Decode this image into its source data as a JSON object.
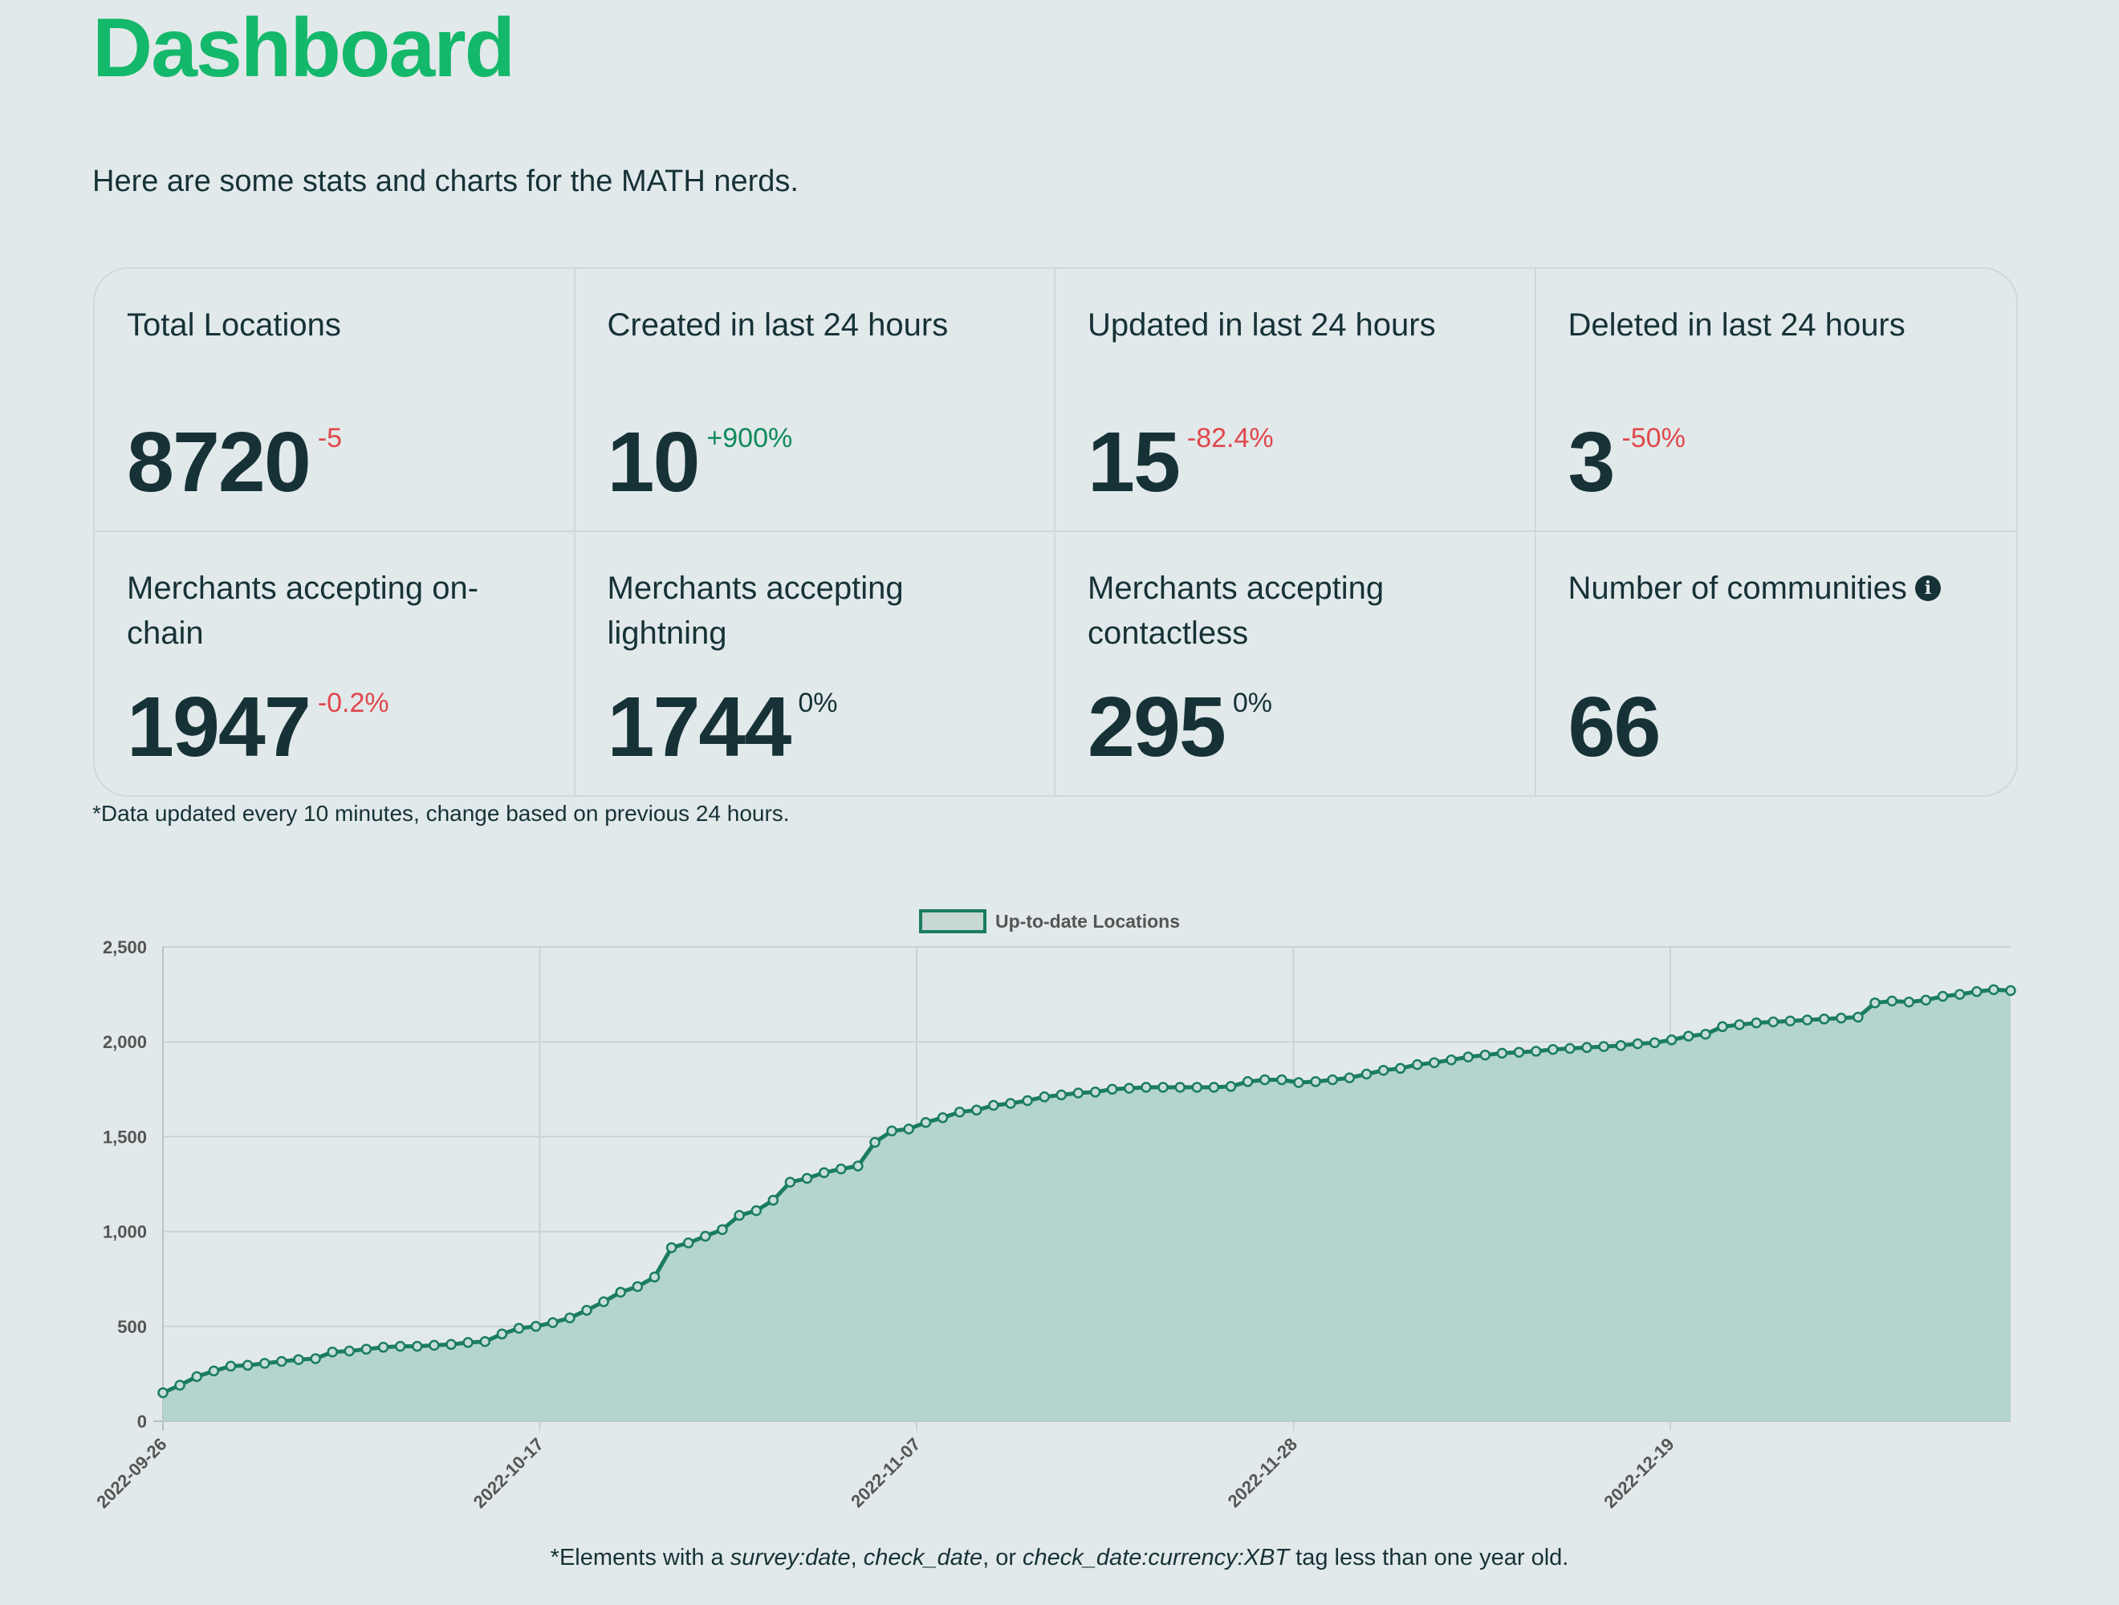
{
  "header": {
    "title": "Dashboard",
    "subtitle": "Here are some stats and charts for the MATH nerds."
  },
  "stats": [
    {
      "label": "Total Locations",
      "value": "8720",
      "change": "-5",
      "trend": "neg"
    },
    {
      "label": "Created in last 24 hours",
      "value": "10",
      "change": "+900%",
      "trend": "pos"
    },
    {
      "label": "Updated in last 24 hours",
      "value": "15",
      "change": "-82.4%",
      "trend": "neg"
    },
    {
      "label": "Deleted in last 24 hours",
      "value": "3",
      "change": "-50%",
      "trend": "neg"
    },
    {
      "label": "Merchants accepting on-chain",
      "value": "1947",
      "change": "-0.2%",
      "trend": "neg"
    },
    {
      "label": "Merchants accepting lightning",
      "value": "1744",
      "change": "0%",
      "trend": "neu"
    },
    {
      "label": "Merchants accepting contactless",
      "value": "295",
      "change": "0%",
      "trend": "neu"
    },
    {
      "label": "Number of communities",
      "value": "66",
      "change": "",
      "trend": "neu",
      "info_icon": "info-icon"
    }
  ],
  "footnote": "*Data updated every 10 minutes, change based on previous 24 hours.",
  "chart_note": {
    "prefix": "*Elements with a ",
    "tag1": "survey:date",
    "sep1": ", ",
    "tag2": "check_date",
    "sep2": ", or ",
    "tag3": "check_date:currency:XBT",
    "suffix": " tag less than one year old."
  },
  "colors": {
    "accent": "#14b86a",
    "line": "#1a7d5e",
    "fill": "#b4d4cf",
    "negative": "#e0474c",
    "positive": "#0f8a5c"
  },
  "chart_data": {
    "type": "area",
    "legend": {
      "label": "Up-to-date Locations",
      "position": "top-center"
    },
    "ylim": [
      0,
      2500
    ],
    "yticks": [
      "0",
      "500",
      "1,000",
      "1,500",
      "2,000",
      "2,500"
    ],
    "xticks": [
      "2022-09-26",
      "2022-10-17",
      "2022-11-07",
      "2022-11-28",
      "2022-12-19"
    ],
    "grid": true,
    "series": [
      {
        "name": "Up-to-date Locations",
        "values": [
          150,
          190,
          235,
          265,
          290,
          295,
          305,
          315,
          325,
          330,
          365,
          370,
          380,
          390,
          395,
          395,
          400,
          405,
          415,
          420,
          460,
          490,
          500,
          520,
          545,
          585,
          630,
          680,
          710,
          760,
          915,
          940,
          975,
          1010,
          1085,
          1110,
          1165,
          1260,
          1280,
          1310,
          1330,
          1345,
          1470,
          1530,
          1540,
          1575,
          1600,
          1630,
          1640,
          1665,
          1675,
          1690,
          1710,
          1720,
          1730,
          1735,
          1750,
          1755,
          1760,
          1760,
          1760,
          1760,
          1760,
          1765,
          1790,
          1800,
          1800,
          1785,
          1790,
          1800,
          1810,
          1830,
          1850,
          1860,
          1880,
          1890,
          1905,
          1920,
          1930,
          1940,
          1945,
          1950,
          1960,
          1965,
          1970,
          1975,
          1980,
          1990,
          1995,
          2010,
          2030,
          2040,
          2080,
          2090,
          2100,
          2105,
          2110,
          2115,
          2120,
          2125,
          2130,
          2205,
          2215,
          2210,
          2220,
          2240,
          2250,
          2265,
          2275,
          2270
        ]
      }
    ]
  }
}
